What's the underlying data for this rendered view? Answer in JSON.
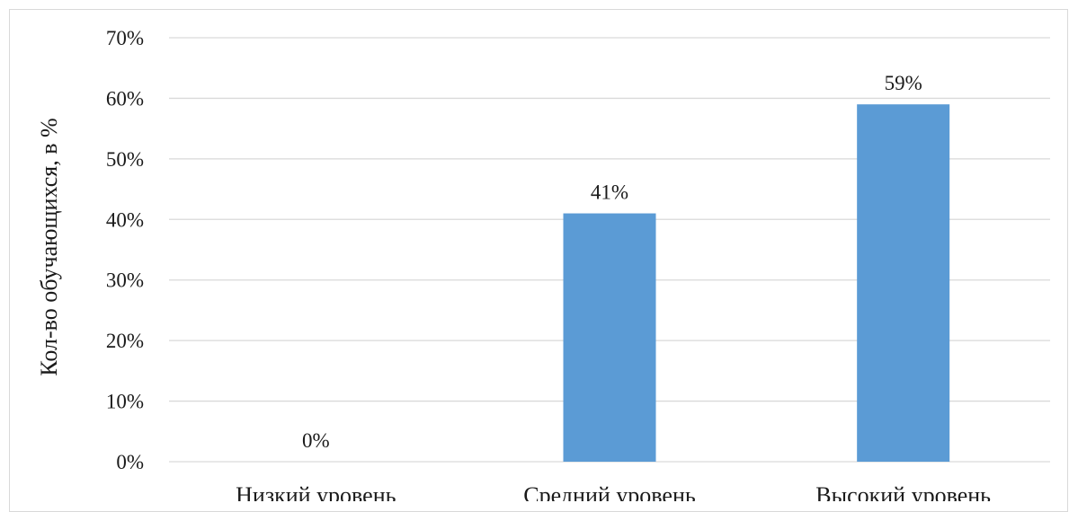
{
  "chart_data": {
    "type": "bar",
    "title": "",
    "xlabel": "",
    "ylabel": "Кол-во обучающихся, в %",
    "categories": [
      "Низкий уровень",
      "Средний уровень",
      "Высокий уровень"
    ],
    "values": [
      0,
      41,
      59
    ],
    "value_labels": [
      "0%",
      "41%",
      "59%"
    ],
    "ylim": [
      0,
      70
    ],
    "yticks": [
      0,
      10,
      20,
      30,
      40,
      50,
      60,
      70
    ],
    "ytick_labels": [
      "0%",
      "10%",
      "20%",
      "30%",
      "40%",
      "50%",
      "60%",
      "70%"
    ],
    "grid": true,
    "legend": "none",
    "bar_color": "#5b9bd5"
  }
}
